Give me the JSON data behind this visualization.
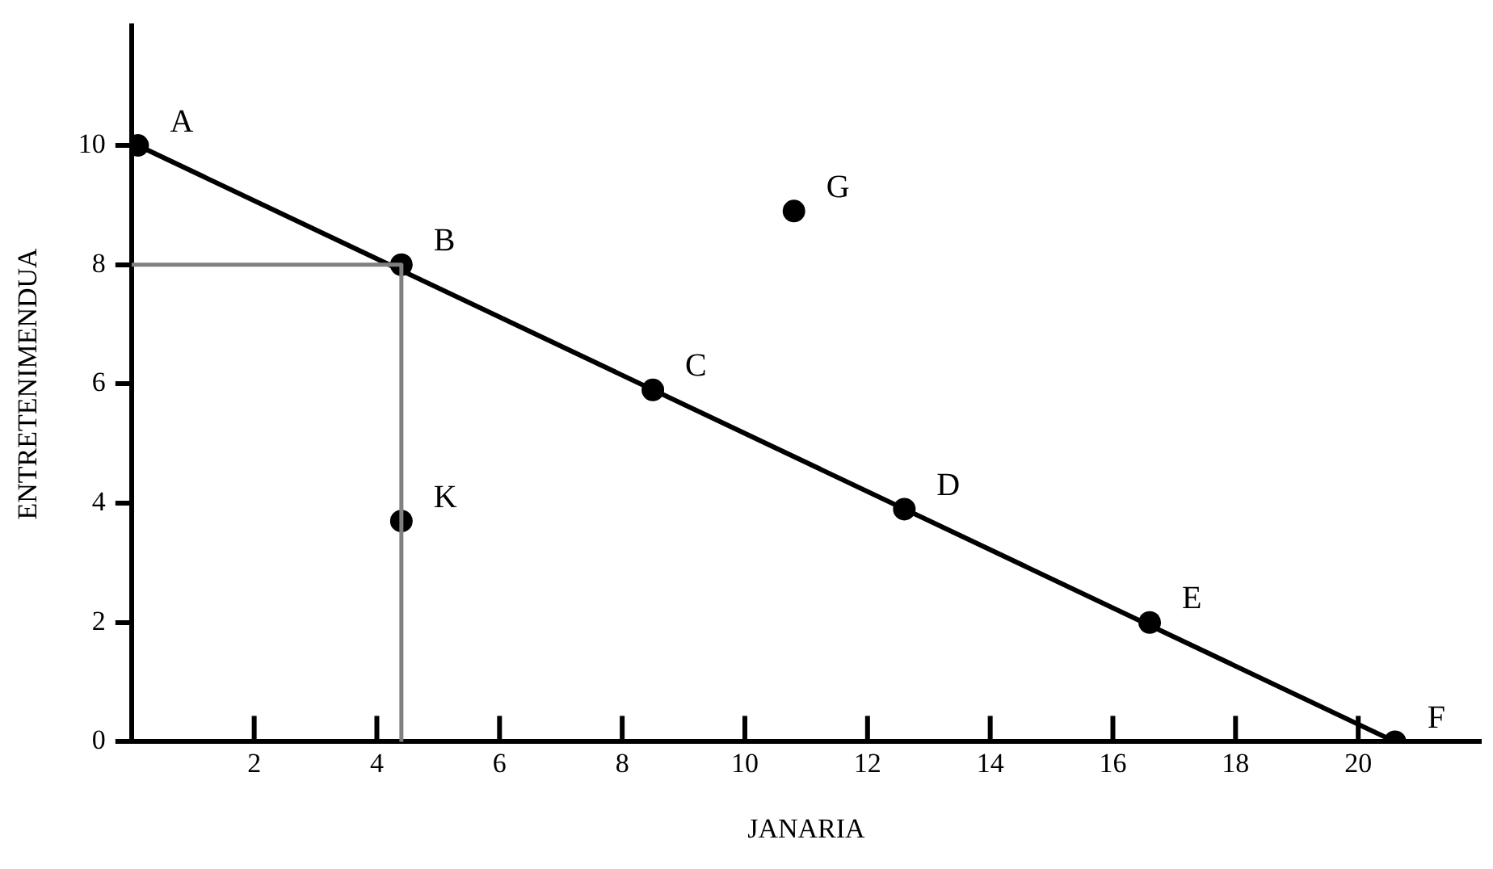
{
  "chart_data": {
    "type": "line",
    "xlabel": "JANARIA",
    "ylabel": "ENTRETENIMENDUA",
    "xlim": [
      0,
      22
    ],
    "ylim": [
      0,
      12
    ],
    "xticks": [
      2,
      4,
      6,
      8,
      10,
      12,
      14,
      16,
      18,
      20
    ],
    "yticks": [
      0,
      2,
      4,
      6,
      8,
      10
    ],
    "series": [
      {
        "type": "line",
        "color": "#808080",
        "marker": "none",
        "line_style": "solid",
        "x": [
          0,
          4.4,
          4.4
        ],
        "values": [
          8,
          8,
          0
        ]
      },
      {
        "type": "line",
        "color": "#000000",
        "marker": "none",
        "line_style": "solid",
        "x": [
          0.1,
          20.6
        ],
        "values": [
          10,
          0
        ]
      },
      {
        "type": "scatter",
        "color": "#000000",
        "marker": "circle",
        "x": [
          0.1,
          4.4,
          8.5,
          12.6,
          16.6,
          20.6,
          10.8,
          4.4
        ],
        "values": [
          10,
          8,
          5.9,
          3.9,
          2,
          0,
          8.9,
          3.7
        ]
      }
    ],
    "annotations": [
      {
        "text": "A",
        "x": 0.1,
        "y": 10
      },
      {
        "text": "B",
        "x": 4.4,
        "y": 8
      },
      {
        "text": "C",
        "x": 8.5,
        "y": 5.9
      },
      {
        "text": "D",
        "x": 12.6,
        "y": 3.9
      },
      {
        "text": "E",
        "x": 16.6,
        "y": 2
      },
      {
        "text": "F",
        "x": 20.6,
        "y": 0
      },
      {
        "text": "G",
        "x": 10.8,
        "y": 8.9
      },
      {
        "text": "K",
        "x": 4.4,
        "y": 3.7
      }
    ]
  }
}
